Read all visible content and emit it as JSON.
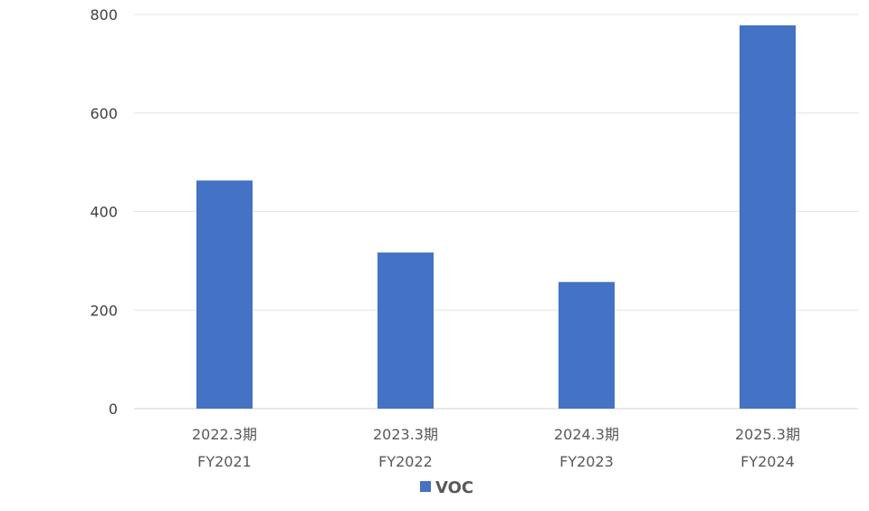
{
  "chart_data": {
    "type": "bar",
    "categories": [
      {
        "line1": "2022.3期",
        "line2": "FY2021"
      },
      {
        "line1": "2023.3期",
        "line2": "FY2022"
      },
      {
        "line1": "2024.3期",
        "line2": "FY2023"
      },
      {
        "line1": "2025.3期",
        "line2": "FY2024"
      }
    ],
    "series": [
      {
        "name": "VOC",
        "values": [
          463,
          317,
          257,
          778
        ],
        "color": "#4472C4"
      }
    ],
    "ylim": [
      0,
      800
    ],
    "yticks": [
      0,
      200,
      400,
      600,
      800
    ],
    "grid": true,
    "legend_position": "bottom",
    "title": "",
    "xlabel": "",
    "ylabel": ""
  }
}
